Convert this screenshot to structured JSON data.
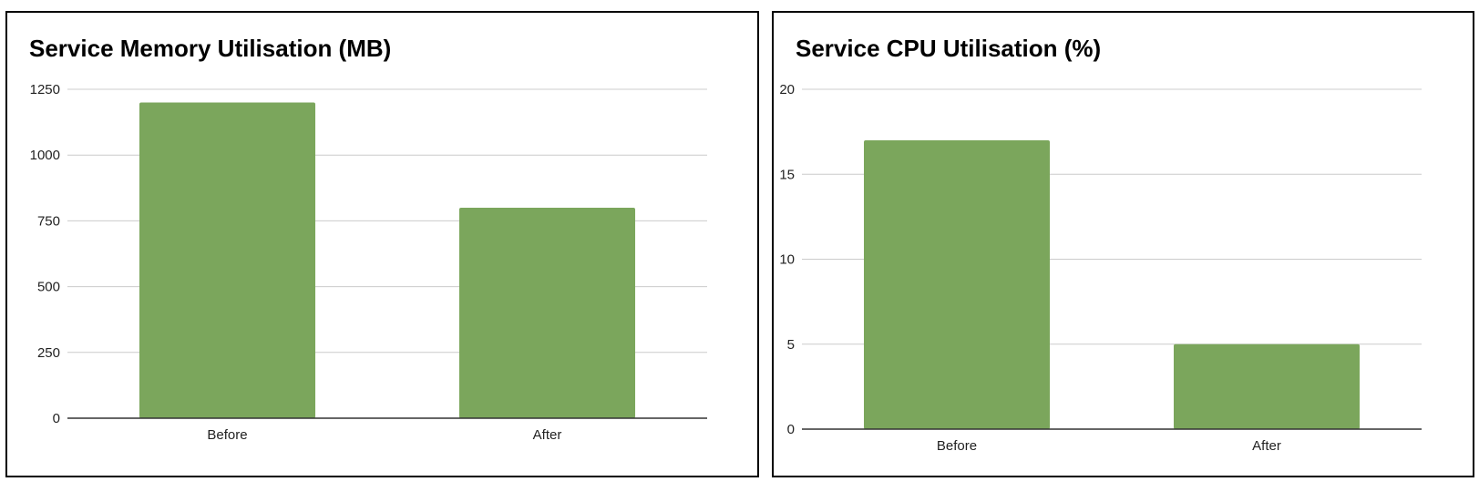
{
  "colors": {
    "bar": "#7ba65c",
    "grid": "#cccccc",
    "axis": "#333333"
  },
  "chart_data": [
    {
      "type": "bar",
      "title": "Service Memory Utilisation (MB)",
      "categories": [
        "Before",
        "After"
      ],
      "values": [
        1200,
        800
      ],
      "ylim": [
        0,
        1250
      ],
      "yticks": [
        0,
        250,
        500,
        750,
        1000,
        1250
      ],
      "grid": true,
      "legend": "none"
    },
    {
      "type": "bar",
      "title": "Service CPU Utilisation (%)",
      "categories": [
        "Before",
        "After"
      ],
      "values": [
        17,
        5
      ],
      "ylim": [
        0,
        20
      ],
      "yticks": [
        0,
        5,
        10,
        15,
        20
      ],
      "grid": true,
      "legend": "none"
    }
  ]
}
